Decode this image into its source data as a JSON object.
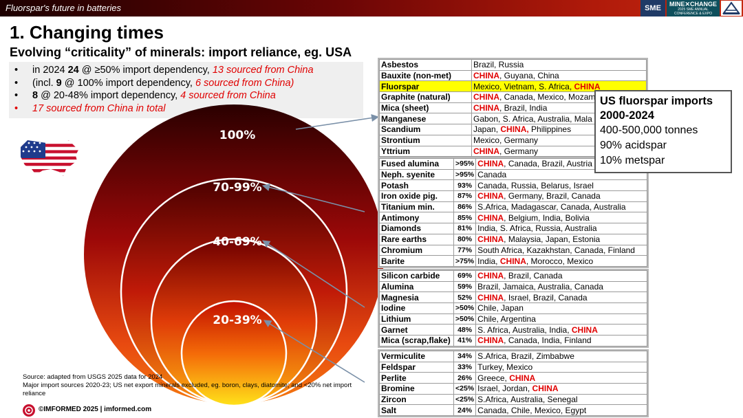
{
  "header": {
    "title": "Fluorspar's future in batteries",
    "logo_sme": "SME",
    "logo_mx_line1": "MINE✕CHANGE",
    "logo_mx_line2": "2025 SME ANNUAL",
    "logo_mx_line3": "CONFERENCE & EXPO"
  },
  "slide": {
    "title": "1. Changing times",
    "subtitle": "Evolving “criticality” of minerals: import reliance, eg. USA"
  },
  "bullets": {
    "b1": {
      "pre": "in 2024 ",
      "num": "24",
      "mid": " @ ≥50% import dependency, ",
      "red": "13 sourced from China"
    },
    "b2": {
      "pre": "(incl. ",
      "num": "9",
      "mid": " @ 100% import dependency, ",
      "red": "6 sourced from China)"
    },
    "b3": {
      "num": "8",
      "mid": " @ 20-48% import dependency, ",
      "red": "4 sourced from China"
    },
    "b4": {
      "red": "17 sourced from China in total"
    }
  },
  "rings": {
    "r100": "100%",
    "r70": "70-99%",
    "r40": "40-69%",
    "r20": "20-39%"
  },
  "sidebox": {
    "title_line1": "US fluorspar imports",
    "title_line2": "2000-2024",
    "line1": "400-500,000 tonnes",
    "line2": "90% acidspar",
    "line3": "10% metspar"
  },
  "table100": [
    {
      "name": "Asbestos",
      "srcA": "Brazil, Russia",
      "china": "",
      "srcB": ""
    },
    {
      "name": "Bauxite (non-met)",
      "srcA": "",
      "china": "CHINA",
      "srcB": ", Guyana, China"
    },
    {
      "name": "Fluorspar",
      "srcA": "Mexico, Vietnam, S. Africa, ",
      "china": "CHINA",
      "srcB": ""
    },
    {
      "name": "Graphite (natural)",
      "srcA": "",
      "china": "CHINA",
      "srcB": ", Canada, Mexico, Mozam"
    },
    {
      "name": "Mica (sheet)",
      "srcA": "",
      "china": "CHINA",
      "srcB": ", Brazil, India"
    },
    {
      "name": "Manganese",
      "srcA": "Gabon, S. Africa, Australia, Mala",
      "china": "",
      "srcB": ""
    },
    {
      "name": "Scandium",
      "srcA": "Japan, ",
      "china": "CHINA,",
      "srcB": " Philippines"
    },
    {
      "name": "Strontium",
      "srcA": "Mexico, Germany",
      "china": "",
      "srcB": ""
    },
    {
      "name": "Yttrium",
      "srcA": "",
      "china": "CHINA",
      "srcB": ", Germany"
    }
  ],
  "table70": [
    {
      "name": "Fused alumina",
      "pct": ">95%",
      "srcA": "",
      "china": "CHINA",
      "srcB": ", Canada, Brazil, Austria"
    },
    {
      "name": "Neph. syenite",
      "pct": ">95%",
      "srcA": "Canada",
      "china": "",
      "srcB": ""
    },
    {
      "name": "Potash",
      "pct": "93%",
      "srcA": "Canada, Russia, Belarus, Israel",
      "china": "",
      "srcB": ""
    },
    {
      "name": "Iron oxide pig.",
      "pct": "87%",
      "srcA": "",
      "china": "CHINA",
      "srcB": ", Germany, Brazil, Canada"
    },
    {
      "name": "Titanium min.",
      "pct": "86%",
      "srcA": "S.Africa, Madagascar, Canada, Australia",
      "china": "",
      "srcB": ""
    },
    {
      "name": "Antimony",
      "pct": "85%",
      "srcA": "",
      "china": "CHINA",
      "srcB": ", Belgium, India, Bolivia"
    },
    {
      "name": "Diamonds",
      "pct": "81%",
      "srcA": "India, S. Africa, Russia, Australia",
      "china": "",
      "srcB": ""
    },
    {
      "name": "Rare earths",
      "pct": "80%",
      "srcA": "",
      "china": "CHINA",
      "srcB": ", Malaysia, Japan, Estonia"
    },
    {
      "name": "Chromium",
      "pct": "77%",
      "srcA": "South Africa, Kazakhstan, Canada, Finland",
      "china": "",
      "srcB": ""
    },
    {
      "name": "Barite",
      "pct": ">75%",
      "srcA": "India, ",
      "china": "CHINA",
      "srcB": ", Morocco, Mexico"
    }
  ],
  "table40": [
    {
      "name": "Silicon carbide",
      "pct": "69%",
      "srcA": "",
      "china": "CHINA",
      "srcB": ", Brazil, Canada"
    },
    {
      "name": "Alumina",
      "pct": "59%",
      "srcA": "Brazil, Jamaica, Australia, Canada",
      "china": "",
      "srcB": ""
    },
    {
      "name": "Magnesia",
      "pct": "52%",
      "srcA": "",
      "china": "CHINA",
      "srcB": ", Israel, Brazil, Canada"
    },
    {
      "name": "Iodine",
      "pct": ">50%",
      "srcA": "Chile, Japan",
      "china": "",
      "srcB": ""
    },
    {
      "name": "Lithium",
      "pct": ">50%",
      "srcA": "Chile, Argentina",
      "china": "",
      "srcB": ""
    },
    {
      "name": "Garnet",
      "pct": "48%",
      "srcA": "S. Africa, Australia, India, ",
      "china": "CHINA",
      "srcB": ""
    },
    {
      "name": "Mica (scrap,flake)",
      "pct": "41%",
      "srcA": "",
      "china": "CHINA",
      "srcB": ", Canada, India, Finland"
    }
  ],
  "table20": [
    {
      "name": "Vermiculite",
      "pct": "34%",
      "srcA": "S.Africa, Brazil, Zimbabwe",
      "china": "",
      "srcB": ""
    },
    {
      "name": "Feldspar",
      "pct": "33%",
      "srcA": "Turkey, Mexico",
      "china": "",
      "srcB": ""
    },
    {
      "name": "Perlite",
      "pct": "26%",
      "srcA": "Greece, ",
      "china": "CHINA",
      "srcB": ""
    },
    {
      "name": "Bromine",
      "pct": "<25%",
      "srcA": "Israel, Jordan, ",
      "china": "CHINA",
      "srcB": ""
    },
    {
      "name": "Zircon",
      "pct": "<25%",
      "srcA": "S.Africa, Australia, Senegal",
      "china": "",
      "srcB": ""
    },
    {
      "name": "Salt",
      "pct": "24%",
      "srcA": "Canada, Chile, Mexico, Egypt",
      "china": "",
      "srcB": ""
    }
  ],
  "source": {
    "line1": "Source: adapted from USGS 2025 data for 2024",
    "line2": "Major import sources 2020-23; US net export minerals excluded, eg. boron, clays, diatomite; and <20% net import reliance"
  },
  "footer": {
    "text": "©IMFORMED 2025  |  imformed.com"
  },
  "colors": {
    "china": "#e00000",
    "highlight": "#ffff00",
    "header_dark": "#1c0000",
    "header_red": "#c42a10"
  }
}
